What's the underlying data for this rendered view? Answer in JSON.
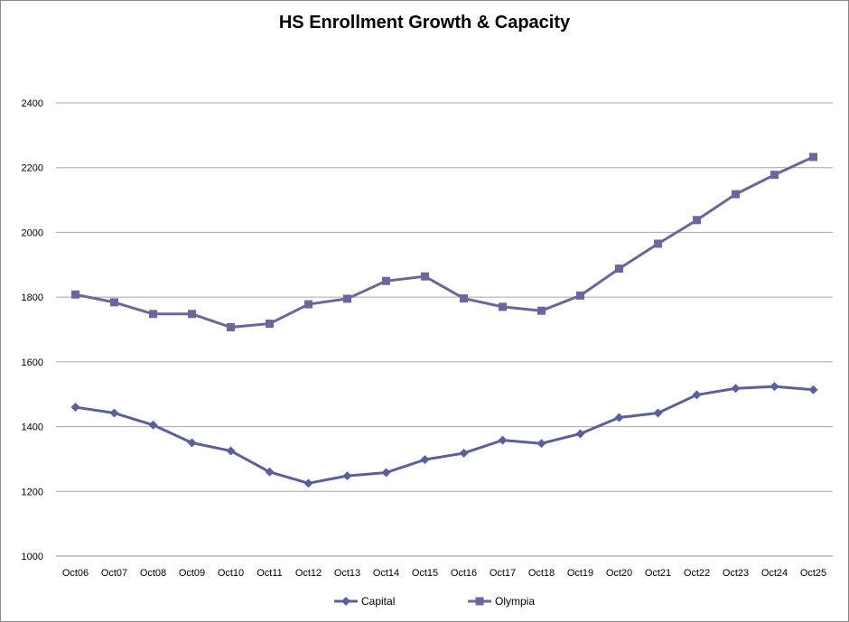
{
  "chart_data": {
    "type": "line",
    "title": "HS Enrollment Growth & Capacity",
    "xlabel": "",
    "ylabel": "",
    "ylim": [
      1000,
      2400
    ],
    "yticks": [
      1000,
      1200,
      1400,
      1600,
      1800,
      2000,
      2200,
      2400
    ],
    "categories": [
      "Oct06",
      "Oct07",
      "Oct08",
      "Oct09",
      "Oct10",
      "Oct11",
      "Oct12",
      "Oct13",
      "Oct14",
      "Oct15",
      "Oct16",
      "Oct17",
      "Oct18",
      "Oct19",
      "Oct20",
      "Oct21",
      "Oct22",
      "Oct23",
      "Oct24",
      "Oct25"
    ],
    "grid": true,
    "legend_position": "bottom",
    "series": [
      {
        "name": "Capital",
        "marker": "diamond",
        "color": "#5a5fa0",
        "values": [
          1460,
          1442,
          1405,
          1350,
          1325,
          1260,
          1225,
          1248,
          1258,
          1298,
          1318,
          1358,
          1348,
          1378,
          1428,
          1442,
          1498,
          1518,
          1524,
          1514
        ]
      },
      {
        "name": "Olympia",
        "marker": "square",
        "color": "#6d64a0",
        "values": [
          1808,
          1784,
          1748,
          1748,
          1707,
          1718,
          1778,
          1795,
          1850,
          1864,
          1796,
          1770,
          1758,
          1805,
          1888,
          1965,
          2038,
          2118,
          2178,
          2233
        ]
      }
    ]
  }
}
